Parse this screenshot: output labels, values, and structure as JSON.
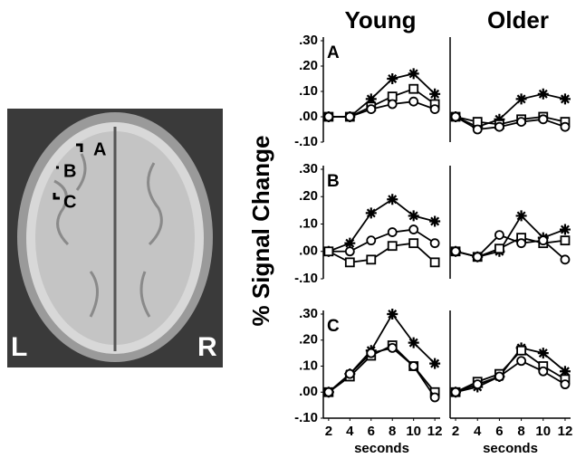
{
  "column_titles": [
    "Young",
    "Older"
  ],
  "y_label": "% Signal Change",
  "image": {
    "regions": [
      "A",
      "B",
      "C"
    ],
    "left": "L",
    "right": "R"
  },
  "chart_data": [
    {
      "type": "line",
      "panel": "A",
      "x": [
        2,
        4,
        6,
        8,
        10,
        12
      ],
      "xlim": [
        1.5,
        12.5
      ],
      "ylim": [
        -0.1,
        0.3
      ],
      "yticks": [
        {
          "value": 0.3,
          "label": ".30"
        },
        {
          "value": 0.2,
          "label": ".20"
        },
        {
          "value": 0.1,
          "label": ".10"
        },
        {
          "value": 0,
          "label": ".00"
        },
        {
          "value": -0.1,
          "label": "-.10"
        }
      ],
      "series": [
        {
          "marker": "star",
          "color": "#000000",
          "values": [
            0,
            0,
            0.07,
            0.15,
            0.17,
            0.09
          ]
        },
        {
          "marker": "square",
          "color": "#000000",
          "values": [
            0,
            0,
            0.04,
            0.08,
            0.11,
            0.05
          ]
        },
        {
          "marker": "circle",
          "color": "#000000",
          "values": [
            0,
            0,
            0.03,
            0.05,
            0.06,
            0.03
          ]
        }
      ]
    },
    {
      "type": "line",
      "x": [
        2,
        4,
        6,
        8,
        10,
        12
      ],
      "xlim": [
        1.5,
        12.5
      ],
      "ylim": [
        -0.1,
        0.3
      ],
      "series": [
        {
          "marker": "star",
          "color": "#000000",
          "values": [
            0,
            -0.04,
            -0.01,
            0.07,
            0.09,
            0.07
          ]
        },
        {
          "marker": "square",
          "color": "#000000",
          "values": [
            0,
            -0.02,
            -0.03,
            -0.01,
            0,
            -0.02
          ]
        },
        {
          "marker": "circle",
          "color": "#000000",
          "values": [
            0,
            -0.05,
            -0.04,
            -0.02,
            -0.01,
            -0.04
          ]
        }
      ]
    },
    {
      "type": "line",
      "panel": "B",
      "x": [
        2,
        4,
        6,
        8,
        10,
        12
      ],
      "xlim": [
        1.5,
        12.5
      ],
      "ylim": [
        -0.1,
        0.3
      ],
      "yticks": [
        {
          "value": 0.3,
          "label": ".30"
        },
        {
          "value": 0.2,
          "label": ".20"
        },
        {
          "value": 0.1,
          "label": ".10"
        },
        {
          "value": 0,
          "label": ".00"
        },
        {
          "value": -0.1,
          "label": "-.10"
        }
      ],
      "series": [
        {
          "marker": "star",
          "color": "#000000",
          "values": [
            0,
            0.03,
            0.14,
            0.19,
            0.13,
            0.11
          ]
        },
        {
          "marker": "circle",
          "color": "#000000",
          "values": [
            0,
            0,
            0.04,
            0.07,
            0.08,
            0.03
          ]
        },
        {
          "marker": "square",
          "color": "#000000",
          "values": [
            0,
            -0.04,
            -0.03,
            0.02,
            0.03,
            -0.04
          ]
        }
      ]
    },
    {
      "type": "line",
      "x": [
        2,
        4,
        6,
        8,
        10,
        12
      ],
      "xlim": [
        1.5,
        12.5
      ],
      "ylim": [
        -0.1,
        0.3
      ],
      "series": [
        {
          "marker": "star",
          "color": "#000000",
          "values": [
            0,
            -0.02,
            0,
            0.13,
            0.05,
            0.08
          ]
        },
        {
          "marker": "square",
          "color": "#000000",
          "values": [
            0,
            -0.02,
            0.01,
            0.05,
            0.03,
            0.04
          ]
        },
        {
          "marker": "circle",
          "color": "#000000",
          "values": [
            0,
            -0.02,
            0.06,
            0.03,
            0.04,
            -0.03
          ]
        }
      ]
    },
    {
      "type": "line",
      "panel": "C",
      "x": [
        2,
        4,
        6,
        8,
        10,
        12
      ],
      "xlim": [
        1.5,
        12.5
      ],
      "ylim": [
        -0.1,
        0.3
      ],
      "xlabel": "seconds",
      "xticks": [
        2,
        4,
        6,
        8,
        10,
        12
      ],
      "yticks": [
        {
          "value": 0.3,
          "label": ".30"
        },
        {
          "value": 0.2,
          "label": ".20"
        },
        {
          "value": 0.1,
          "label": ".10"
        },
        {
          "value": 0,
          "label": ".00"
        },
        {
          "value": -0.1,
          "label": "-.10"
        }
      ],
      "series": [
        {
          "marker": "star",
          "color": "#000000",
          "values": [
            0,
            0.07,
            0.16,
            0.3,
            0.19,
            0.11
          ]
        },
        {
          "marker": "square",
          "color": "#000000",
          "values": [
            0,
            0.06,
            0.14,
            0.18,
            0.1,
            0
          ]
        },
        {
          "marker": "circle",
          "color": "#000000",
          "values": [
            0,
            0.07,
            0.15,
            0.17,
            0.1,
            -0.02
          ]
        }
      ]
    },
    {
      "type": "line",
      "x": [
        2,
        4,
        6,
        8,
        10,
        12
      ],
      "xlim": [
        1.5,
        12.5
      ],
      "ylim": [
        -0.1,
        0.3
      ],
      "xlabel": "seconds",
      "xticks": [
        2,
        4,
        6,
        8,
        10,
        12
      ],
      "series": [
        {
          "marker": "star",
          "color": "#000000",
          "values": [
            0,
            0.02,
            0.06,
            0.17,
            0.15,
            0.08
          ]
        },
        {
          "marker": "square",
          "color": "#000000",
          "values": [
            0,
            0.04,
            0.07,
            0.16,
            0.1,
            0.05
          ]
        },
        {
          "marker": "circle",
          "color": "#000000",
          "values": [
            0,
            0.03,
            0.06,
            0.12,
            0.08,
            0.03
          ]
        }
      ]
    }
  ]
}
